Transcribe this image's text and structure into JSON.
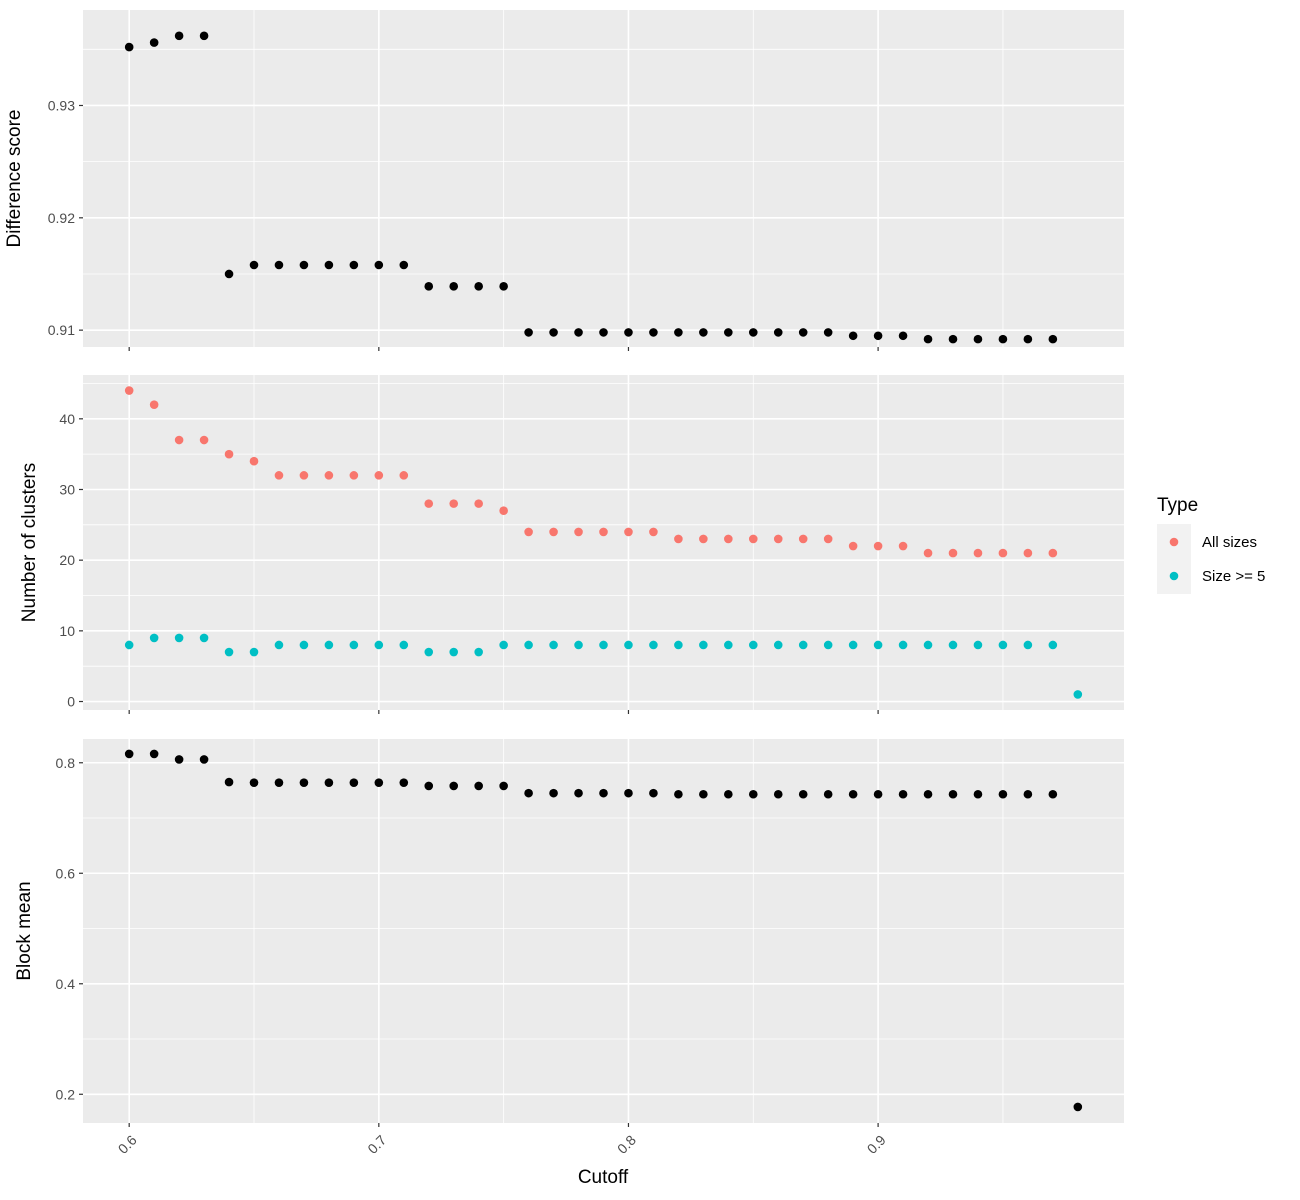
{
  "chart_data": [
    {
      "type": "scatter",
      "ylabel": "Difference score",
      "ylim": [
        0.9085,
        0.9385
      ],
      "yticks": [
        0.91,
        0.92,
        0.93
      ],
      "ytick_labels": [
        "0.91",
        "0.92",
        "0.93"
      ],
      "xlim": [
        0.5815,
        0.9985
      ],
      "grid": true,
      "series": [
        {
          "color": "#000000",
          "x": [
            0.6,
            0.61,
            0.62,
            0.63,
            0.64,
            0.65,
            0.66,
            0.67,
            0.68,
            0.69,
            0.7,
            0.71,
            0.72,
            0.73,
            0.74,
            0.75,
            0.76,
            0.77,
            0.78,
            0.79,
            0.8,
            0.81,
            0.82,
            0.83,
            0.84,
            0.85,
            0.86,
            0.87,
            0.88,
            0.89,
            0.9,
            0.91,
            0.92,
            0.93,
            0.94,
            0.95,
            0.96,
            0.97
          ],
          "y": [
            0.9352,
            0.9356,
            0.9362,
            0.9362,
            0.915,
            0.9158,
            0.9158,
            0.9158,
            0.9158,
            0.9158,
            0.9158,
            0.9158,
            0.9139,
            0.9139,
            0.9139,
            0.9139,
            0.9098,
            0.9098,
            0.9098,
            0.9098,
            0.9098,
            0.9098,
            0.9098,
            0.9098,
            0.9098,
            0.9098,
            0.9098,
            0.9098,
            0.9098,
            0.9095,
            0.9095,
            0.9095,
            0.9092,
            0.9092,
            0.9092,
            0.9092,
            0.9092,
            0.9092
          ]
        }
      ]
    },
    {
      "type": "scatter",
      "ylabel": "Number of clusters",
      "ylim": [
        -1.2,
        46.2
      ],
      "yticks": [
        0,
        10,
        20,
        30,
        40
      ],
      "ytick_labels": [
        "0",
        "10",
        "20",
        "30",
        "40"
      ],
      "xlim": [
        0.5815,
        0.9985
      ],
      "grid": true,
      "series": [
        {
          "name": "All sizes",
          "color": "#F8766D",
          "x": [
            0.6,
            0.61,
            0.62,
            0.63,
            0.64,
            0.65,
            0.66,
            0.67,
            0.68,
            0.69,
            0.7,
            0.71,
            0.72,
            0.73,
            0.74,
            0.75,
            0.76,
            0.77,
            0.78,
            0.79,
            0.8,
            0.81,
            0.82,
            0.83,
            0.84,
            0.85,
            0.86,
            0.87,
            0.88,
            0.89,
            0.9,
            0.91,
            0.92,
            0.93,
            0.94,
            0.95,
            0.96,
            0.97
          ],
          "y": [
            44,
            42,
            37,
            37,
            35,
            34,
            32,
            32,
            32,
            32,
            32,
            32,
            28,
            28,
            28,
            27,
            24,
            24,
            24,
            24,
            24,
            24,
            23,
            23,
            23,
            23,
            23,
            23,
            23,
            22,
            22,
            22,
            21,
            21,
            21,
            21,
            21,
            21
          ]
        },
        {
          "name": "Size >= 5",
          "color": "#00BFC4",
          "x": [
            0.6,
            0.61,
            0.62,
            0.63,
            0.64,
            0.65,
            0.66,
            0.67,
            0.68,
            0.69,
            0.7,
            0.71,
            0.72,
            0.73,
            0.74,
            0.75,
            0.76,
            0.77,
            0.78,
            0.79,
            0.8,
            0.81,
            0.82,
            0.83,
            0.84,
            0.85,
            0.86,
            0.87,
            0.88,
            0.89,
            0.9,
            0.91,
            0.92,
            0.93,
            0.94,
            0.95,
            0.96,
            0.97,
            0.98
          ],
          "y": [
            8,
            9,
            9,
            9,
            7,
            7,
            8,
            8,
            8,
            8,
            8,
            8,
            7,
            7,
            7,
            8,
            8,
            8,
            8,
            8,
            8,
            8,
            8,
            8,
            8,
            8,
            8,
            8,
            8,
            8,
            8,
            8,
            8,
            8,
            8,
            8,
            8,
            8,
            1
          ]
        }
      ]
    },
    {
      "type": "scatter",
      "ylabel": "Block mean",
      "xlabel": "Cutoff",
      "ylim": [
        0.148,
        0.843
      ],
      "yticks": [
        0.2,
        0.4,
        0.6,
        0.8
      ],
      "ytick_labels": [
        "0.2",
        "0.4",
        "0.6",
        "0.8"
      ],
      "xlim": [
        0.5815,
        0.9985
      ],
      "xticks": [
        0.6,
        0.7,
        0.8,
        0.9
      ],
      "xtick_labels": [
        "0.6",
        "0.7",
        "0.8",
        "0.9"
      ],
      "grid": true,
      "series": [
        {
          "color": "#000000",
          "x": [
            0.6,
            0.61,
            0.62,
            0.63,
            0.64,
            0.65,
            0.66,
            0.67,
            0.68,
            0.69,
            0.7,
            0.71,
            0.72,
            0.73,
            0.74,
            0.75,
            0.76,
            0.77,
            0.78,
            0.79,
            0.8,
            0.81,
            0.82,
            0.83,
            0.84,
            0.85,
            0.86,
            0.87,
            0.88,
            0.89,
            0.9,
            0.91,
            0.92,
            0.93,
            0.94,
            0.95,
            0.96,
            0.97,
            0.98
          ],
          "y": [
            0.816,
            0.816,
            0.806,
            0.806,
            0.765,
            0.764,
            0.764,
            0.764,
            0.764,
            0.764,
            0.764,
            0.764,
            0.758,
            0.758,
            0.758,
            0.758,
            0.745,
            0.745,
            0.745,
            0.745,
            0.745,
            0.745,
            0.743,
            0.743,
            0.743,
            0.743,
            0.743,
            0.743,
            0.743,
            0.743,
            0.743,
            0.743,
            0.743,
            0.743,
            0.743,
            0.743,
            0.743,
            0.743,
            0.177
          ]
        }
      ]
    }
  ],
  "legend": {
    "title": "Type",
    "entries": [
      {
        "label": "All sizes",
        "color": "#F8766D"
      },
      {
        "label": "Size >= 5",
        "color": "#00BFC4"
      }
    ],
    "position": "right"
  },
  "panel_background": "#EBEBEB",
  "grid_color": "#FFFFFF"
}
